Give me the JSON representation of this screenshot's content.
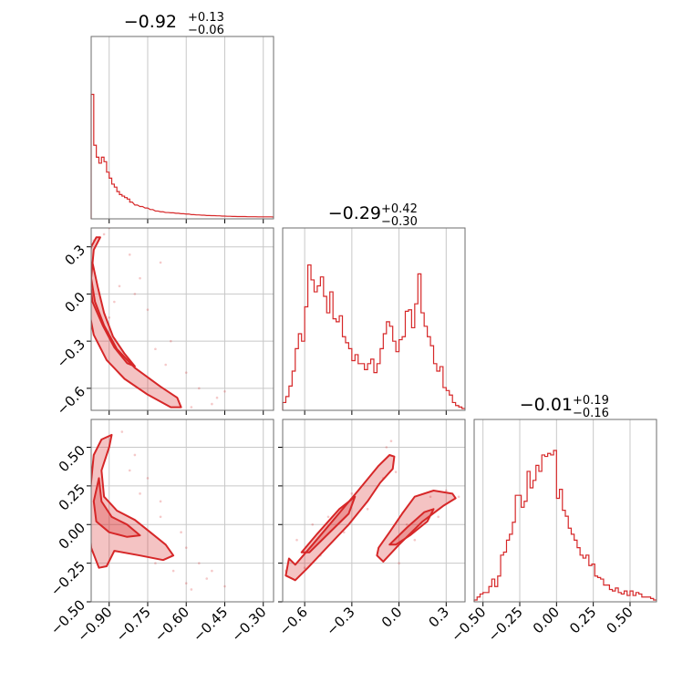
{
  "chart_data": {
    "type": "corner",
    "color": "#d62728",
    "parameters": [
      {
        "median": "−0.92",
        "plus": "+0.13",
        "minus": "−0.06",
        "range": [
          -0.97,
          -0.26
        ],
        "ticks": [
          -0.9,
          -0.75,
          -0.6,
          -0.45,
          -0.3
        ],
        "tick_labels": [
          "−0.90",
          "−0.75",
          "−0.60",
          "−0.45",
          "−0.30"
        ],
        "hist_x": [
          -0.97,
          -0.96,
          -0.95,
          -0.94,
          -0.93,
          -0.92,
          -0.91,
          -0.9,
          -0.89,
          -0.88,
          -0.87,
          -0.86,
          -0.85,
          -0.84,
          -0.83,
          -0.82,
          -0.8,
          -0.78,
          -0.76,
          -0.74,
          -0.72,
          -0.7,
          -0.68,
          -0.66,
          -0.64,
          -0.62,
          -0.6,
          -0.58,
          -0.56,
          -0.54,
          -0.52,
          -0.5,
          -0.48,
          -0.46,
          -0.44,
          -0.42,
          -0.4,
          -0.38,
          -0.36,
          -0.34,
          -0.32,
          -0.3,
          -0.28,
          -0.26
        ],
        "hist_y": [
          0.82,
          0.48,
          0.4,
          0.36,
          0.4,
          0.37,
          0.3,
          0.26,
          0.22,
          0.2,
          0.17,
          0.15,
          0.14,
          0.13,
          0.12,
          0.1,
          0.08,
          0.07,
          0.06,
          0.05,
          0.04,
          0.035,
          0.03,
          0.028,
          0.025,
          0.022,
          0.02,
          0.016,
          0.014,
          0.012,
          0.01,
          0.009,
          0.008,
          0.006,
          0.005,
          0.004,
          0.003,
          0.003,
          0.002,
          0.002,
          0.001,
          0.001,
          0.001,
          0
        ]
      },
      {
        "median": "−0.29",
        "plus": "+0.42",
        "minus": "−0.30",
        "range": [
          -0.74,
          0.42
        ],
        "ticks": [
          -0.6,
          -0.3,
          0.0,
          0.3
        ],
        "tick_labels": [
          "−0.6",
          "−0.3",
          "0.0",
          "0.3"
        ],
        "tick_labels_y": [
          "0.3",
          "0.0",
          "−0.3",
          "−0.6"
        ],
        "hist_x": [
          -0.74,
          -0.72,
          -0.7,
          -0.68,
          -0.66,
          -0.64,
          -0.62,
          -0.6,
          -0.58,
          -0.56,
          -0.54,
          -0.52,
          -0.5,
          -0.48,
          -0.46,
          -0.44,
          -0.42,
          -0.4,
          -0.38,
          -0.36,
          -0.34,
          -0.32,
          -0.3,
          -0.28,
          -0.26,
          -0.24,
          -0.22,
          -0.2,
          -0.18,
          -0.16,
          -0.14,
          -0.12,
          -0.1,
          -0.08,
          -0.06,
          -0.04,
          -0.02,
          0.0,
          0.02,
          0.04,
          0.06,
          0.08,
          0.1,
          0.12,
          0.14,
          0.16,
          0.18,
          0.2,
          0.22,
          0.24,
          0.26,
          0.28,
          0.3,
          0.32,
          0.34,
          0.36,
          0.38,
          0.4
        ],
        "hist_y": [
          0.04,
          0.08,
          0.15,
          0.25,
          0.4,
          0.5,
          0.45,
          0.68,
          0.96,
          0.86,
          0.78,
          0.82,
          0.88,
          0.75,
          0.64,
          0.78,
          0.6,
          0.58,
          0.62,
          0.48,
          0.44,
          0.4,
          0.32,
          0.36,
          0.3,
          0.3,
          0.26,
          0.3,
          0.33,
          0.24,
          0.3,
          0.4,
          0.5,
          0.58,
          0.55,
          0.45,
          0.38,
          0.46,
          0.48,
          0.65,
          0.66,
          0.54,
          0.7,
          0.9,
          0.64,
          0.55,
          0.48,
          0.42,
          0.3,
          0.25,
          0.28,
          0.14,
          0.12,
          0.09,
          0.04,
          0.02,
          0.01,
          0
        ]
      },
      {
        "median": "−0.01",
        "plus": "+0.19",
        "minus": "−0.16",
        "range": [
          -0.56,
          0.68
        ],
        "ticks": [
          -0.5,
          -0.25,
          0.0,
          0.25,
          0.5
        ],
        "tick_labels": [
          "−0.50",
          "−0.25",
          "0.00",
          "0.25",
          "0.50"
        ],
        "tick_labels_y": [
          "0.50",
          "0.25",
          "0.00",
          "−0.25",
          "−0.50"
        ],
        "hist_x": [
          -0.56,
          -0.54,
          -0.52,
          -0.5,
          -0.48,
          -0.46,
          -0.44,
          -0.42,
          -0.4,
          -0.38,
          -0.36,
          -0.34,
          -0.32,
          -0.3,
          -0.28,
          -0.26,
          -0.24,
          -0.22,
          -0.2,
          -0.18,
          -0.16,
          -0.14,
          -0.12,
          -0.1,
          -0.08,
          -0.06,
          -0.04,
          -0.02,
          0.0,
          0.02,
          0.04,
          0.06,
          0.08,
          0.1,
          0.12,
          0.14,
          0.16,
          0.18,
          0.2,
          0.22,
          0.24,
          0.26,
          0.28,
          0.3,
          0.32,
          0.34,
          0.36,
          0.38,
          0.4,
          0.42,
          0.44,
          0.46,
          0.48,
          0.5,
          0.52,
          0.54,
          0.56,
          0.58,
          0.6,
          0.62,
          0.64,
          0.66
        ],
        "hist_y": [
          0.0,
          0.02,
          0.04,
          0.05,
          0.05,
          0.09,
          0.14,
          0.09,
          0.16,
          0.3,
          0.32,
          0.4,
          0.44,
          0.52,
          0.7,
          0.7,
          0.62,
          0.66,
          0.86,
          0.75,
          0.8,
          0.9,
          0.86,
          0.97,
          0.96,
          0.98,
          0.97,
          1.0,
          0.68,
          0.74,
          0.6,
          0.56,
          0.48,
          0.44,
          0.4,
          0.35,
          0.3,
          0.28,
          0.3,
          0.23,
          0.24,
          0.16,
          0.15,
          0.14,
          0.1,
          0.1,
          0.07,
          0.06,
          0.08,
          0.05,
          0.04,
          0.06,
          0.03,
          0.06,
          0.03,
          0.05,
          0.04,
          0.02,
          0.02,
          0.02,
          0.01,
          0
        ]
      }
    ],
    "panels": [
      {
        "name": "p1-vs-p0",
        "x_param": 0,
        "y_param": 1,
        "ylim": [
          -0.74,
          0.42
        ],
        "y_ticks": [
          0.3,
          0.0,
          -0.3,
          -0.6
        ],
        "contours": [
          [
            [
              -0.95,
              0.36
            ],
            [
              -0.935,
              0.36
            ],
            [
              -0.96,
              0.28
            ],
            [
              -0.97,
              0.1
            ],
            [
              -0.955,
              -0.05
            ],
            [
              -0.92,
              -0.2
            ],
            [
              -0.87,
              -0.35
            ],
            [
              -0.8,
              -0.47
            ],
            [
              -0.7,
              -0.59
            ],
            [
              -0.635,
              -0.66
            ],
            [
              -0.62,
              -0.72
            ],
            [
              -0.66,
              -0.72
            ],
            [
              -0.75,
              -0.64
            ],
            [
              -0.84,
              -0.54
            ],
            [
              -0.91,
              -0.42
            ],
            [
              -0.96,
              -0.26
            ],
            [
              -0.985,
              -0.05
            ],
            [
              -0.985,
              0.15
            ],
            [
              -0.97,
              0.3
            ]
          ],
          [
            [
              -0.965,
              0.2
            ],
            [
              -0.945,
              0.05
            ],
            [
              -0.92,
              -0.12
            ],
            [
              -0.885,
              -0.27
            ],
            [
              -0.84,
              -0.38
            ],
            [
              -0.8,
              -0.46
            ],
            [
              -0.83,
              -0.44
            ],
            [
              -0.88,
              -0.34
            ],
            [
              -0.925,
              -0.2
            ],
            [
              -0.965,
              -0.05
            ],
            [
              -0.975,
              0.1
            ]
          ]
        ],
        "points": [
          [
            -0.96,
            0.34
          ],
          [
            -0.9,
            0.42
          ],
          [
            -0.82,
            0.25
          ],
          [
            -0.78,
            0.1
          ],
          [
            -0.86,
            0.05
          ],
          [
            -0.92,
            0.38
          ],
          [
            -0.7,
            0.2
          ],
          [
            -0.75,
            -0.1
          ],
          [
            -0.66,
            -0.3
          ],
          [
            -0.6,
            -0.5
          ],
          [
            -0.55,
            -0.6
          ],
          [
            -0.5,
            -0.7
          ],
          [
            -0.58,
            -0.72
          ],
          [
            -0.48,
            -0.66
          ],
          [
            -0.45,
            -0.62
          ],
          [
            -0.68,
            -0.45
          ],
          [
            -0.72,
            -0.35
          ],
          [
            -0.88,
            -0.05
          ],
          [
            -0.9,
            -0.15
          ],
          [
            -0.8,
            0.0
          ]
        ]
      },
      {
        "name": "p2-vs-p0",
        "x_param": 0,
        "y_param": 2,
        "ylim": [
          -0.5,
          0.68
        ],
        "y_ticks": [
          0.5,
          0.25,
          0.0,
          -0.25,
          -0.5
        ],
        "contours": [
          [
            [
              -0.93,
              0.55
            ],
            [
              -0.89,
              0.58
            ],
            [
              -0.9,
              0.5
            ],
            [
              -0.93,
              0.35
            ],
            [
              -0.92,
              0.18
            ],
            [
              -0.87,
              0.09
            ],
            [
              -0.8,
              0.03
            ],
            [
              -0.74,
              -0.05
            ],
            [
              -0.68,
              -0.13
            ],
            [
              -0.65,
              -0.2
            ],
            [
              -0.69,
              -0.23
            ],
            [
              -0.78,
              -0.2
            ],
            [
              -0.88,
              -0.17
            ],
            [
              -0.91,
              -0.27
            ],
            [
              -0.94,
              -0.28
            ],
            [
              -0.97,
              -0.15
            ],
            [
              -0.98,
              0.05
            ],
            [
              -0.97,
              0.28
            ],
            [
              -0.96,
              0.45
            ]
          ],
          [
            [
              -0.94,
              0.3
            ],
            [
              -0.93,
              0.15
            ],
            [
              -0.89,
              0.05
            ],
            [
              -0.83,
              0.0
            ],
            [
              -0.78,
              -0.07
            ],
            [
              -0.83,
              -0.08
            ],
            [
              -0.9,
              -0.05
            ],
            [
              -0.95,
              0.02
            ],
            [
              -0.96,
              0.15
            ]
          ]
        ],
        "points": [
          [
            -0.85,
            0.6
          ],
          [
            -0.8,
            0.45
          ],
          [
            -0.75,
            0.3
          ],
          [
            -0.7,
            0.15
          ],
          [
            -0.62,
            -0.05
          ],
          [
            -0.6,
            -0.15
          ],
          [
            -0.55,
            -0.25
          ],
          [
            -0.5,
            -0.3
          ],
          [
            -0.6,
            -0.38
          ],
          [
            -0.65,
            -0.3
          ],
          [
            -0.72,
            -0.25
          ],
          [
            -0.78,
            0.2
          ],
          [
            -0.82,
            0.35
          ],
          [
            -0.7,
            0.05
          ],
          [
            -0.58,
            -0.42
          ],
          [
            -0.52,
            -0.35
          ],
          [
            -0.45,
            -0.4
          ]
        ]
      },
      {
        "name": "p2-vs-p1",
        "x_param": 1,
        "y_param": 2,
        "ylim": [
          -0.5,
          0.68
        ],
        "y_ticks": [
          0.5,
          0.25,
          0.0,
          -0.25,
          -0.5
        ],
        "contours": [
          [
            [
              -0.7,
              -0.22
            ],
            [
              -0.66,
              -0.26
            ],
            [
              -0.55,
              -0.13
            ],
            [
              -0.4,
              0.05
            ],
            [
              -0.26,
              0.22
            ],
            [
              -0.13,
              0.38
            ],
            [
              -0.06,
              0.45
            ],
            [
              -0.03,
              0.44
            ],
            [
              -0.04,
              0.36
            ],
            [
              -0.12,
              0.27
            ],
            [
              -0.2,
              0.15
            ],
            [
              -0.32,
              0.0
            ],
            [
              -0.46,
              -0.15
            ],
            [
              -0.58,
              -0.28
            ],
            [
              -0.66,
              -0.36
            ],
            [
              -0.72,
              -0.33
            ]
          ],
          [
            [
              -0.62,
              -0.18
            ],
            [
              -0.52,
              -0.06
            ],
            [
              -0.38,
              0.1
            ],
            [
              -0.28,
              0.18
            ],
            [
              -0.32,
              0.07
            ],
            [
              -0.45,
              -0.06
            ],
            [
              -0.57,
              -0.18
            ]
          ],
          [
            [
              -0.14,
              -0.2
            ],
            [
              -0.1,
              -0.24
            ],
            [
              0.0,
              -0.13
            ],
            [
              0.15,
              0.02
            ],
            [
              0.28,
              0.12
            ],
            [
              0.36,
              0.17
            ],
            [
              0.34,
              0.2
            ],
            [
              0.22,
              0.22
            ],
            [
              0.1,
              0.18
            ],
            [
              0.02,
              0.07
            ],
            [
              -0.06,
              -0.05
            ],
            [
              -0.13,
              -0.15
            ]
          ],
          [
            [
              -0.06,
              -0.13
            ],
            [
              0.05,
              -0.02
            ],
            [
              0.16,
              0.08
            ],
            [
              0.22,
              0.1
            ],
            [
              0.18,
              0.02
            ],
            [
              0.07,
              -0.07
            ],
            [
              -0.02,
              -0.13
            ]
          ]
        ],
        "points": [
          [
            -0.72,
            -0.3
          ],
          [
            -0.6,
            -0.28
          ],
          [
            -0.5,
            -0.2
          ],
          [
            -0.35,
            -0.05
          ],
          [
            -0.2,
            0.1
          ],
          [
            -0.1,
            0.3
          ],
          [
            -0.08,
            0.5
          ],
          [
            -0.05,
            0.54
          ],
          [
            -0.3,
            0.2
          ],
          [
            -0.45,
            0.05
          ],
          [
            0.0,
            -0.25
          ],
          [
            0.1,
            -0.1
          ],
          [
            0.25,
            0.05
          ],
          [
            0.3,
            0.22
          ],
          [
            0.38,
            0.18
          ],
          [
            -0.02,
            0.34
          ],
          [
            -0.55,
            0.0
          ],
          [
            -0.65,
            -0.1
          ],
          [
            0.05,
            0.0
          ],
          [
            0.2,
            0.18
          ]
        ]
      }
    ]
  }
}
